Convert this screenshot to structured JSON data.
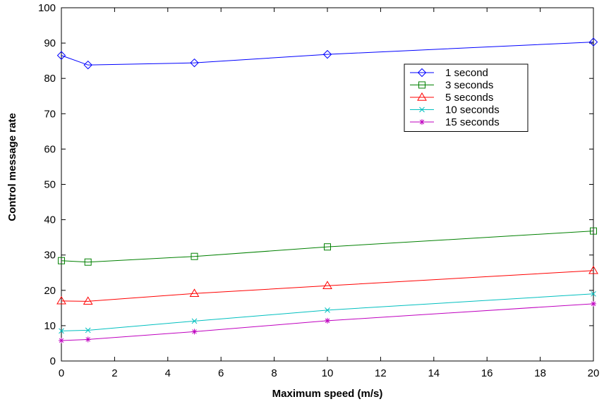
{
  "chart_data": {
    "type": "line",
    "title": "",
    "xlabel": "Maximum speed (m/s)",
    "ylabel": "Control message rate",
    "xlim": [
      0,
      20
    ],
    "ylim": [
      0,
      100
    ],
    "x_ticks": [
      0,
      2,
      4,
      6,
      8,
      10,
      12,
      14,
      16,
      18,
      20
    ],
    "y_ticks": [
      0,
      10,
      20,
      30,
      40,
      50,
      60,
      70,
      80,
      90,
      100
    ],
    "grid": false,
    "legend_position": "top-right",
    "x": [
      0,
      1,
      5,
      10,
      20
    ],
    "series": [
      {
        "name": "1 second",
        "values": [
          86.5,
          83.8,
          84.4,
          86.8,
          90.3
        ],
        "color": "#0000ff",
        "marker": "diamond"
      },
      {
        "name": "3 seconds",
        "values": [
          28.4,
          28.0,
          29.6,
          32.3,
          36.8
        ],
        "color": "#008000",
        "marker": "square"
      },
      {
        "name": "5 seconds",
        "values": [
          17.0,
          16.9,
          19.1,
          21.3,
          25.6
        ],
        "color": "#ff0000",
        "marker": "triangle"
      },
      {
        "name": "10 seconds",
        "values": [
          8.5,
          8.7,
          11.3,
          14.4,
          19.0
        ],
        "color": "#00bfbf",
        "marker": "x"
      },
      {
        "name": "15 seconds",
        "values": [
          5.8,
          6.1,
          8.3,
          11.4,
          16.2
        ],
        "color": "#bf00bf",
        "marker": "star"
      }
    ]
  }
}
